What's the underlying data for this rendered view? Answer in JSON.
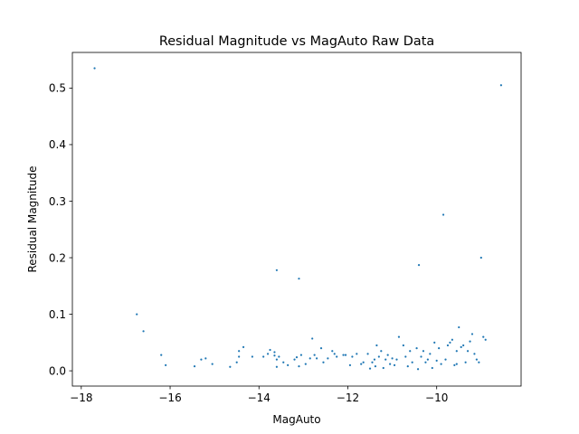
{
  "chart_data": {
    "type": "scatter",
    "title": "Residual Magnitude vs MagAuto Raw Data",
    "xlabel": "MagAuto",
    "ylabel": "Residual Magnitude",
    "xlim": [
      -18.2,
      -8.1
    ],
    "ylim": [
      -0.027,
      0.563
    ],
    "x_ticks": [
      -18,
      -16,
      -14,
      -12,
      -10
    ],
    "x_tick_labels": [
      "−18",
      "−16",
      "−14",
      "−12",
      "−10"
    ],
    "y_ticks": [
      0.0,
      0.1,
      0.2,
      0.3,
      0.4,
      0.5
    ],
    "y_tick_labels": [
      "0.0",
      "0.1",
      "0.2",
      "0.3",
      "0.4",
      "0.5"
    ],
    "grid": false,
    "marker_color": "#1f77b4",
    "points": [
      [
        -17.7,
        0.535
      ],
      [
        -16.75,
        0.1
      ],
      [
        -16.6,
        0.07
      ],
      [
        -16.2,
        0.028
      ],
      [
        -16.1,
        0.01
      ],
      [
        -15.45,
        0.008
      ],
      [
        -15.3,
        0.02
      ],
      [
        -15.2,
        0.022
      ],
      [
        -15.05,
        0.012
      ],
      [
        -14.65,
        0.007
      ],
      [
        -14.5,
        0.015
      ],
      [
        -14.45,
        0.035
      ],
      [
        -14.35,
        0.042
      ],
      [
        -14.45,
        0.025
      ],
      [
        -14.15,
        0.025
      ],
      [
        -13.9,
        0.025
      ],
      [
        -13.75,
        0.037
      ],
      [
        -13.65,
        0.027
      ],
      [
        -13.65,
        0.033
      ],
      [
        -13.6,
        0.02
      ],
      [
        -13.55,
        0.025
      ],
      [
        -13.6,
        0.007
      ],
      [
        -13.6,
        0.178
      ],
      [
        -13.45,
        0.015
      ],
      [
        -13.35,
        0.01
      ],
      [
        -13.2,
        0.02
      ],
      [
        -13.15,
        0.024
      ],
      [
        -13.1,
        0.163
      ],
      [
        -13.1,
        0.008
      ],
      [
        -13.05,
        0.028
      ],
      [
        -12.85,
        0.022
      ],
      [
        -12.8,
        0.057
      ],
      [
        -12.75,
        0.028
      ],
      [
        -12.7,
        0.022
      ],
      [
        -12.6,
        0.04
      ],
      [
        -12.55,
        0.015
      ],
      [
        -12.45,
        0.022
      ],
      [
        -12.35,
        0.035
      ],
      [
        -12.3,
        0.03
      ],
      [
        -12.25,
        0.025
      ],
      [
        -12.1,
        0.028
      ],
      [
        -12.05,
        0.028
      ],
      [
        -11.9,
        0.025
      ],
      [
        -11.8,
        0.03
      ],
      [
        -11.7,
        0.012
      ],
      [
        -11.65,
        0.015
      ],
      [
        -11.55,
        0.03
      ],
      [
        -11.5,
        0.004
      ],
      [
        -11.45,
        0.015
      ],
      [
        -11.4,
        0.02
      ],
      [
        -11.38,
        0.008
      ],
      [
        -11.35,
        0.045
      ],
      [
        -11.3,
        0.025
      ],
      [
        -11.25,
        0.035
      ],
      [
        -11.2,
        0.005
      ],
      [
        -11.15,
        0.02
      ],
      [
        -11.1,
        0.028
      ],
      [
        -11.05,
        0.012
      ],
      [
        -11.0,
        0.022
      ],
      [
        -10.95,
        0.01
      ],
      [
        -10.9,
        0.02
      ],
      [
        -10.85,
        0.06
      ],
      [
        -10.75,
        0.045
      ],
      [
        -10.7,
        0.025
      ],
      [
        -10.6,
        0.035
      ],
      [
        -10.55,
        0.015
      ],
      [
        -10.45,
        0.04
      ],
      [
        -10.42,
        0.003
      ],
      [
        -10.4,
        0.187
      ],
      [
        -10.35,
        0.025
      ],
      [
        -10.3,
        0.035
      ],
      [
        -10.25,
        0.015
      ],
      [
        -10.2,
        0.02
      ],
      [
        -10.15,
        0.03
      ],
      [
        -10.1,
        0.005
      ],
      [
        -10.05,
        0.05
      ],
      [
        -10.0,
        0.018
      ],
      [
        -9.95,
        0.04
      ],
      [
        -9.9,
        0.012
      ],
      [
        -9.85,
        0.276
      ],
      [
        -9.8,
        0.02
      ],
      [
        -9.75,
        0.045
      ],
      [
        -9.7,
        0.05
      ],
      [
        -9.65,
        0.055
      ],
      [
        -9.6,
        0.01
      ],
      [
        -9.55,
        0.035
      ],
      [
        -9.5,
        0.077
      ],
      [
        -9.45,
        0.042
      ],
      [
        -9.4,
        0.045
      ],
      [
        -9.35,
        0.015
      ],
      [
        -9.3,
        0.035
      ],
      [
        -9.25,
        0.052
      ],
      [
        -9.2,
        0.065
      ],
      [
        -9.1,
        0.02
      ],
      [
        -9.05,
        0.015
      ],
      [
        -9.0,
        0.2
      ],
      [
        -8.95,
        0.06
      ],
      [
        -8.9,
        0.055
      ],
      [
        -8.55,
        0.505
      ],
      [
        -9.55,
        0.012
      ],
      [
        -9.15,
        0.03
      ],
      [
        -10.65,
        0.008
      ],
      [
        -11.95,
        0.01
      ],
      [
        -12.95,
        0.012
      ],
      [
        -13.8,
        0.03
      ]
    ]
  }
}
